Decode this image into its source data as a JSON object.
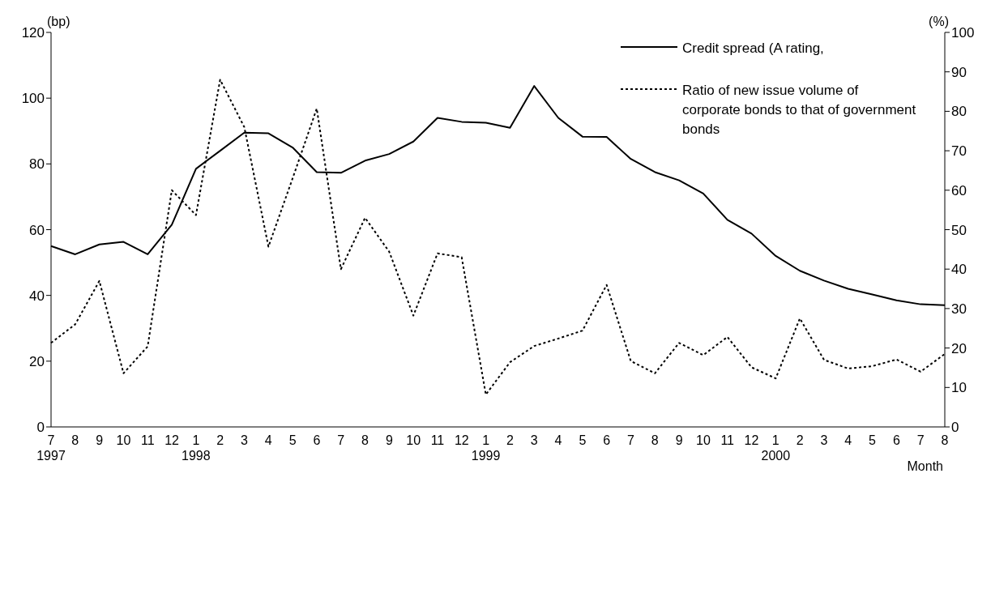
{
  "chart_data": {
    "type": "line",
    "categories": [
      "7\n1997",
      "8",
      "9",
      "10",
      "11",
      "12",
      "1\n1998",
      "2",
      "3",
      "4",
      "5",
      "6",
      "7",
      "8",
      "9",
      "10",
      "11",
      "12",
      "1\n1999",
      "2",
      "3",
      "4",
      "5",
      "6",
      "7",
      "8",
      "9",
      "10",
      "11",
      "12",
      "1\n2000",
      "2",
      "3",
      "4",
      "5",
      "6",
      "7",
      "8"
    ],
    "xlabel": "Month",
    "ylabel": "(bp)",
    "y2label": "(%)",
    "ylim": [
      0,
      120
    ],
    "yticks": [
      0,
      20,
      40,
      60,
      80,
      100,
      120
    ],
    "y2lim": [
      0,
      100
    ],
    "y2ticks": [
      0,
      10,
      20,
      30,
      40,
      50,
      60,
      70,
      80,
      90,
      100
    ],
    "grid": false,
    "legend": "top right",
    "marker": "none",
    "series": [
      {
        "name": "Credit spread (A rating,",
        "color": "#000000",
        "line_style": "solid",
        "values": [
          55,
          52.5,
          55.5,
          56.3,
          52.5,
          61.5,
          78.5,
          84,
          89.5,
          89.3,
          85,
          77.5,
          77.3,
          81,
          83,
          86.8,
          94,
          92.8,
          92.5,
          91,
          103.7,
          94,
          88.3,
          88.2,
          81.5,
          77.5,
          75,
          71,
          63,
          58.8,
          52,
          47.5,
          44.5,
          42,
          40.3,
          38.5,
          37.3,
          37
        ]
      },
      {
        "name": "Ratio of new issue volume of corporate bonds to that of government bonds",
        "color": "#000000",
        "line_style": "dotted",
        "axis": "y2",
        "values": [
          21.3,
          26,
          37,
          13.6,
          20.4,
          60,
          53.7,
          88,
          76,
          45.7,
          63,
          80.7,
          40,
          53,
          44.4,
          28.2,
          44,
          43,
          8.2,
          16.4,
          20.5,
          22.4,
          24.4,
          36,
          16.7,
          13.6,
          21.3,
          18.2,
          22.8,
          15.1,
          12.3,
          27.5,
          17,
          14.8,
          15.4,
          17.1,
          14,
          18.5
        ]
      }
    ]
  }
}
